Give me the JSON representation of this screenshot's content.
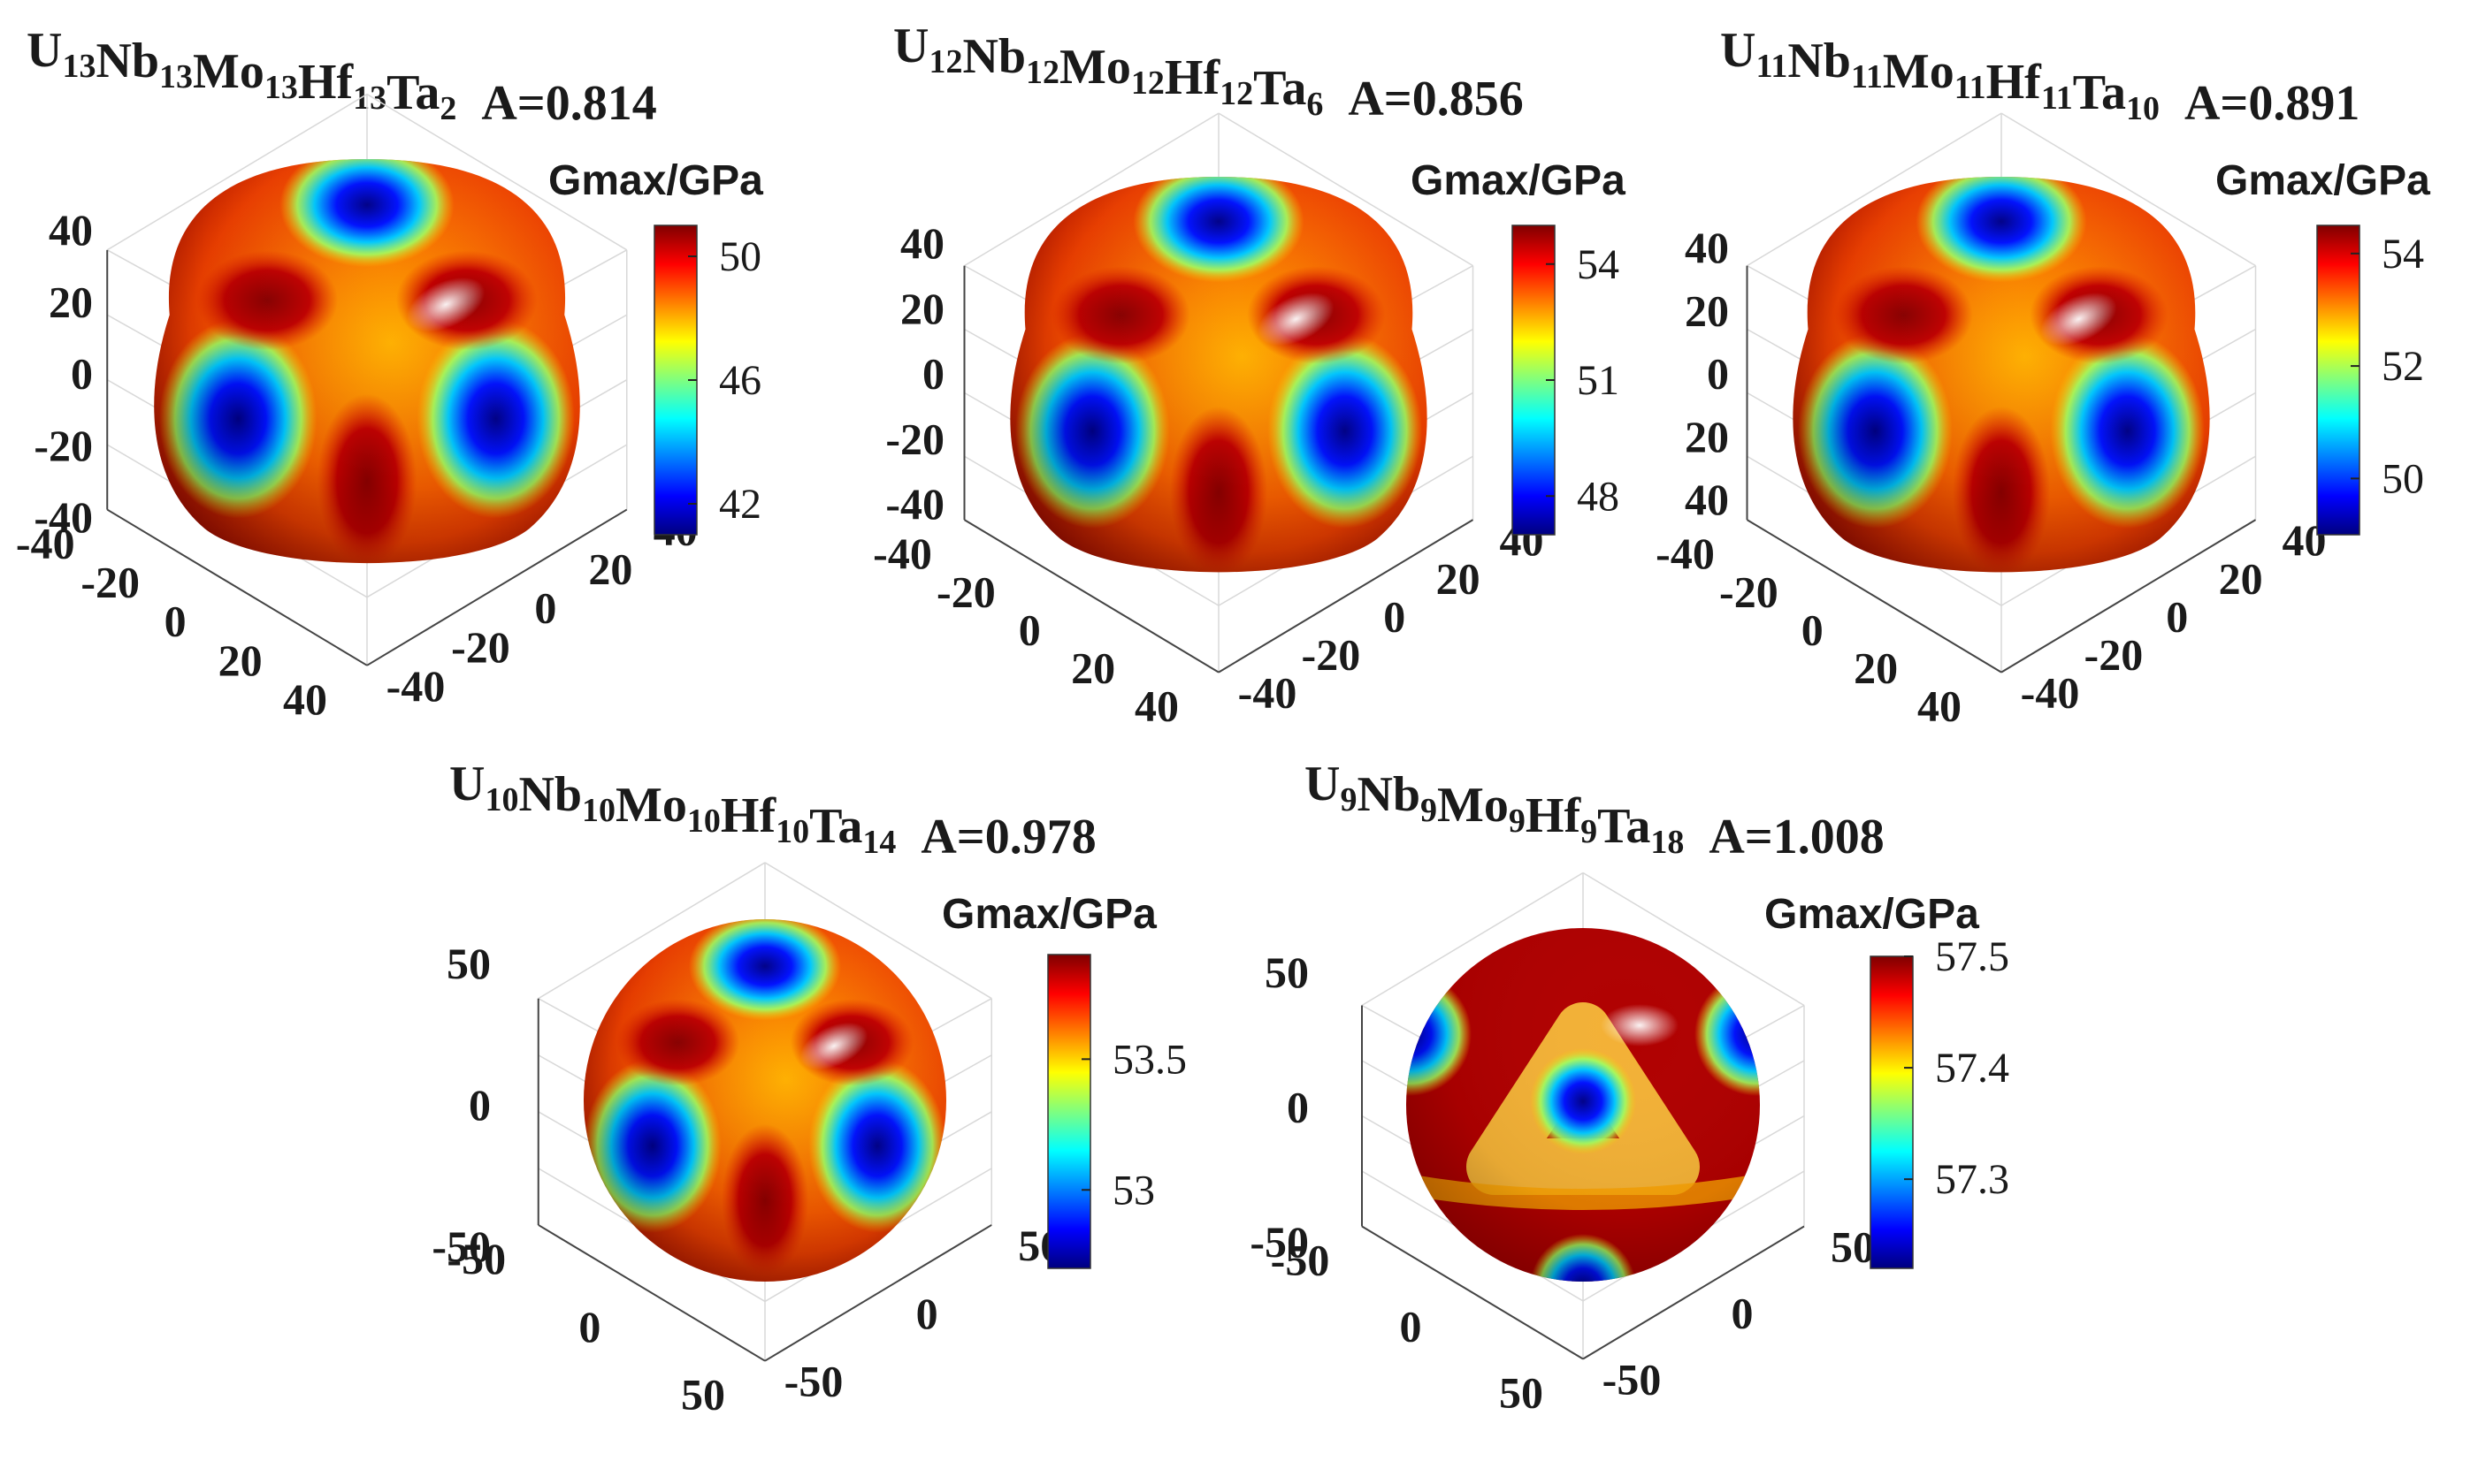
{
  "chart_data": [
    {
      "type": "3d-surface",
      "title_parts": [
        {
          "t": "U",
          "sub": "13"
        },
        {
          "t": "Nb",
          "sub": "13"
        },
        {
          "t": "Mo",
          "sub": "13"
        },
        {
          "t": "Hf",
          "sub": "13"
        },
        {
          "t": "Ta",
          "sub": "2"
        }
      ],
      "anisotropy": "A=0.814",
      "colorbar_label": "Gmax/GPa",
      "colorbar_ticks": [
        "50",
        "46",
        "42"
      ],
      "colorbar_range": [
        41,
        51
      ],
      "z_ticks": [
        "40",
        "20",
        "0",
        "-20",
        "-40"
      ],
      "y_ticks": [
        "-40",
        "-20",
        "0",
        "20",
        "40"
      ],
      "x_ticks": [
        "-40",
        "-20",
        "0",
        "20",
        "40"
      ],
      "axis_range": [
        -40,
        40
      ],
      "shape": "cubic-lobed",
      "view": "octant-corner"
    },
    {
      "type": "3d-surface",
      "title_parts": [
        {
          "t": "U",
          "sub": "12"
        },
        {
          "t": "Nb",
          "sub": "12"
        },
        {
          "t": "Mo",
          "sub": "12"
        },
        {
          "t": "Hf",
          "sub": "12"
        },
        {
          "t": "Ta",
          "sub": "6"
        }
      ],
      "anisotropy": "A=0.856",
      "colorbar_label": "Gmax/GPa",
      "colorbar_ticks": [
        "54",
        "51",
        "48"
      ],
      "colorbar_range": [
        47,
        55
      ],
      "z_ticks": [
        "40",
        "20",
        "0",
        "-20",
        "-40"
      ],
      "y_ticks": [
        "-40",
        "-20",
        "0",
        "20",
        "40"
      ],
      "x_ticks": [
        "-40",
        "-20",
        "0",
        "20",
        "40"
      ],
      "axis_range": [
        -40,
        40
      ],
      "shape": "cubic-lobed",
      "view": "octant-corner"
    },
    {
      "type": "3d-surface",
      "title_parts": [
        {
          "t": "U",
          "sub": "11"
        },
        {
          "t": "Nb",
          "sub": "11"
        },
        {
          "t": "Mo",
          "sub": "11"
        },
        {
          "t": "Hf",
          "sub": "11"
        },
        {
          "t": "Ta",
          "sub": "10"
        }
      ],
      "anisotropy": "A=0.891",
      "colorbar_label": "Gmax/GPa",
      "colorbar_ticks": [
        "54",
        "52",
        "50"
      ],
      "colorbar_range": [
        49,
        54.5
      ],
      "z_ticks": [
        "40",
        "20",
        "0",
        "20",
        "40"
      ],
      "y_ticks": [
        "-40",
        "-20",
        "0",
        "20",
        "40"
      ],
      "x_ticks": [
        "-40",
        "-20",
        "0",
        "20",
        "40"
      ],
      "axis_range": [
        -40,
        40
      ],
      "shape": "cubic-lobed",
      "view": "octant-corner"
    },
    {
      "type": "3d-surface",
      "title_parts": [
        {
          "t": "U",
          "sub": "10"
        },
        {
          "t": "Nb",
          "sub": "10"
        },
        {
          "t": "Mo",
          "sub": "10"
        },
        {
          "t": "Hf",
          "sub": "10"
        },
        {
          "t": "Ta",
          "sub": "14"
        }
      ],
      "anisotropy": "A=0.978",
      "colorbar_label": "Gmax/GPa",
      "colorbar_ticks": [
        "53.5",
        "53"
      ],
      "colorbar_range": [
        52.7,
        53.9
      ],
      "z_ticks": [
        "50",
        "0",
        "-50"
      ],
      "y_ticks": [
        "-50",
        "0",
        "50"
      ],
      "x_ticks": [
        "-50",
        "0",
        "50"
      ],
      "axis_range": [
        -50,
        50
      ],
      "shape": "near-sphere",
      "view": "octant-corner"
    },
    {
      "type": "3d-surface",
      "title_parts": [
        {
          "t": "U",
          "sub": "9"
        },
        {
          "t": "Nb",
          "sub": "9"
        },
        {
          "t": "Mo",
          "sub": "9"
        },
        {
          "t": "Hf",
          "sub": "9"
        },
        {
          "t": "Ta",
          "sub": "18"
        }
      ],
      "anisotropy": "A=1.008",
      "colorbar_label": "Gmax/GPa",
      "colorbar_ticks": [
        "57.5",
        "57.4",
        "57.3"
      ],
      "colorbar_range": [
        57.22,
        57.5
      ],
      "z_ticks": [
        "50",
        "0",
        "-50"
      ],
      "y_ticks": [
        "-50",
        "0",
        "50"
      ],
      "x_ticks": [
        "-50",
        "0",
        "50"
      ],
      "axis_range": [
        -50,
        50
      ],
      "shape": "sphere-inverted",
      "view": "octant-corner"
    }
  ]
}
